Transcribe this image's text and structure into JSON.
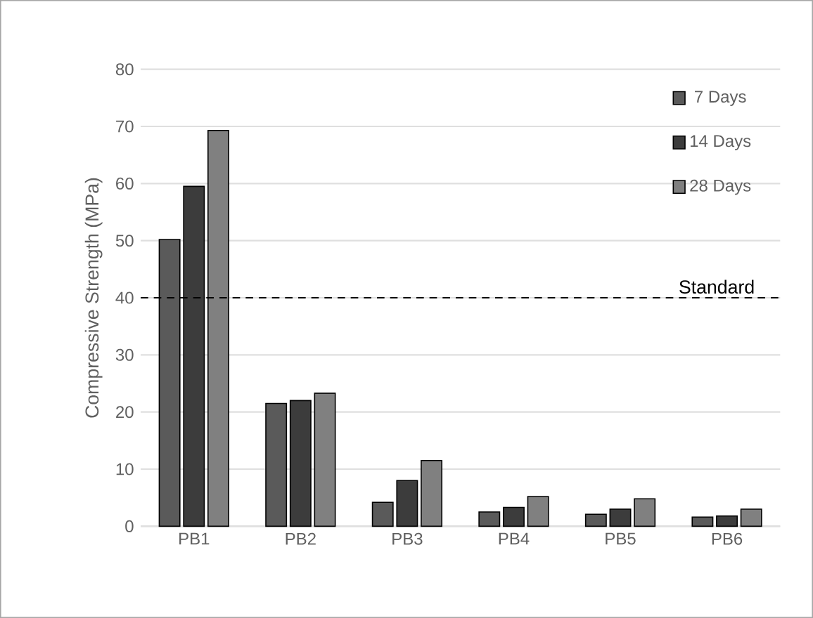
{
  "chart_data": {
    "type": "bar",
    "ylabel": "Compressive Strength (MPa)",
    "categories": [
      "PB1",
      "PB2",
      "PB3",
      "PB4",
      "PB5",
      "PB6"
    ],
    "series": [
      {
        "name": "7 Days",
        "color": "#5a5a5a",
        "values": [
          50.2,
          21.5,
          4.2,
          2.5,
          2.1,
          1.6
        ]
      },
      {
        "name": "14 Days",
        "color": "#3c3c3c",
        "values": [
          59.5,
          22,
          8,
          3.3,
          3,
          1.8
        ]
      },
      {
        "name": "28 Days",
        "color": "#808080",
        "values": [
          69.3,
          23.3,
          11.5,
          5.2,
          4.8,
          3
        ]
      }
    ],
    "ylim": [
      0,
      80
    ],
    "yticks": [
      0,
      10,
      20,
      30,
      40,
      50,
      60,
      70,
      80
    ],
    "grid": "y",
    "legend": "top right",
    "ref_lines": [
      {
        "axis": "y",
        "value": 40,
        "label": "Standard",
        "color": "#000000",
        "line_style": "dashed"
      }
    ]
  }
}
